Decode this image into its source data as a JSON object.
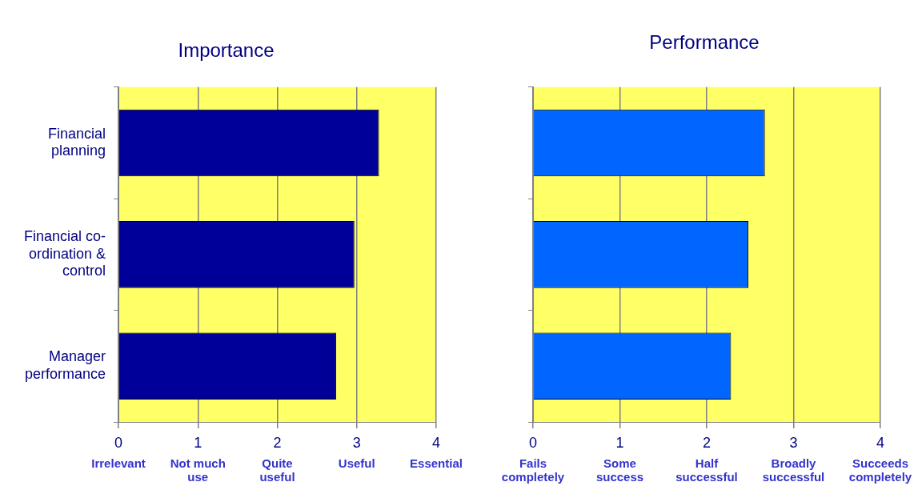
{
  "chart_data": [
    {
      "type": "bar",
      "orientation": "horizontal",
      "title": "Importance",
      "categories": [
        "Financial\nplanning",
        "Financial co-\nordination &\ncontrol",
        "Manager\nperformance"
      ],
      "values": [
        3.28,
        2.97,
        2.74
      ],
      "color": "#000099",
      "xlim": [
        0,
        4
      ],
      "xticks": [
        {
          "value": 0,
          "label": "0\nIrrelevant"
        },
        {
          "value": 1,
          "label": "1\nNot much\nuse"
        },
        {
          "value": 2,
          "label": "2\nQuite\nuseful"
        },
        {
          "value": 3,
          "label": "3\nUseful"
        },
        {
          "value": 4,
          "label": "4\nEssential"
        }
      ],
      "grid": "x",
      "legend": false
    },
    {
      "type": "bar",
      "orientation": "horizontal",
      "title": "Performance",
      "categories": [
        null,
        null,
        null
      ],
      "values": [
        2.67,
        2.48,
        2.28
      ],
      "color": "#0066ff",
      "xlim": [
        0,
        4
      ],
      "xticks": [
        {
          "value": 0,
          "label": "0\nFails\ncompletely"
        },
        {
          "value": 1,
          "label": "1\nSome\nsuccess"
        },
        {
          "value": 2,
          "label": "2\nHalf\nsuccessful"
        },
        {
          "value": 3,
          "label": "3\nBroadly\nsuccessful"
        },
        {
          "value": 4,
          "label": "4\nSucceeds\ncompletely"
        }
      ],
      "grid": "x",
      "legend": false,
      "tick_labels": "x"
    }
  ]
}
